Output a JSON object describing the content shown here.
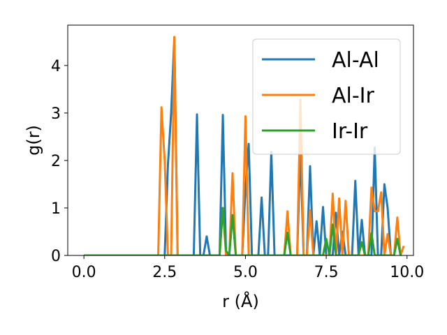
{
  "chart_data": {
    "type": "line",
    "title": "",
    "xlabel": "r (Å)",
    "ylabel": "g(r)",
    "xlim": [
      -0.5,
      10.2
    ],
    "ylim": [
      0,
      4.85
    ],
    "xticks": [
      0.0,
      2.5,
      5.0,
      7.5,
      10.0
    ],
    "xtick_labels": [
      "0.0",
      "2.5",
      "5.0",
      "7.5",
      "10.0"
    ],
    "yticks": [
      0,
      1,
      2,
      3,
      4
    ],
    "ytick_labels": [
      "0",
      "1",
      "2",
      "3",
      "4"
    ],
    "grid": false,
    "legend_position": "top-right",
    "series": [
      {
        "name": "Al-Al",
        "color": "#1f77b4",
        "points": [
          [
            0,
            0
          ],
          [
            2.5,
            0
          ],
          [
            2.6,
            1.9
          ],
          [
            2.7,
            3.0
          ],
          [
            2.8,
            4.6
          ],
          [
            2.9,
            0
          ],
          [
            3.4,
            0
          ],
          [
            3.5,
            2.97
          ],
          [
            3.6,
            0
          ],
          [
            3.7,
            0
          ],
          [
            3.8,
            0.4
          ],
          [
            3.9,
            0
          ],
          [
            4.2,
            0
          ],
          [
            4.3,
            2.96
          ],
          [
            4.4,
            0
          ],
          [
            4.9,
            0
          ],
          [
            5.0,
            1.4
          ],
          [
            5.1,
            2.35
          ],
          [
            5.2,
            0
          ],
          [
            5.4,
            0
          ],
          [
            5.5,
            1.22
          ],
          [
            5.6,
            0
          ],
          [
            5.7,
            0
          ],
          [
            5.8,
            2.18
          ],
          [
            5.9,
            0
          ],
          [
            6.6,
            0
          ],
          [
            6.7,
            2.2
          ],
          [
            6.8,
            0
          ],
          [
            6.9,
            0
          ],
          [
            7.0,
            1.88
          ],
          [
            7.1,
            0
          ],
          [
            7.2,
            0.72
          ],
          [
            7.3,
            0
          ],
          [
            7.4,
            1.02
          ],
          [
            7.5,
            0
          ],
          [
            7.7,
            0
          ],
          [
            7.8,
            0.9
          ],
          [
            7.9,
            0
          ],
          [
            8.0,
            0.5
          ],
          [
            8.1,
            0
          ],
          [
            8.3,
            0
          ],
          [
            8.4,
            1.57
          ],
          [
            8.5,
            0
          ],
          [
            8.6,
            0.75
          ],
          [
            8.7,
            0
          ],
          [
            8.9,
            0
          ],
          [
            9.0,
            2.27
          ],
          [
            9.1,
            0
          ],
          [
            9.2,
            0
          ],
          [
            9.3,
            1.5
          ],
          [
            9.4,
            1.0
          ],
          [
            9.5,
            0
          ],
          [
            9.6,
            0
          ]
        ]
      },
      {
        "name": "Al-Ir",
        "color": "#ff7f0e",
        "points": [
          [
            0,
            0
          ],
          [
            2.3,
            0
          ],
          [
            2.4,
            3.12
          ],
          [
            2.5,
            2.0
          ],
          [
            2.6,
            0
          ],
          [
            2.7,
            0
          ],
          [
            2.8,
            4.6
          ],
          [
            2.9,
            0
          ],
          [
            4.2,
            0
          ],
          [
            4.3,
            1.0
          ],
          [
            4.4,
            0
          ],
          [
            4.5,
            0
          ],
          [
            4.6,
            1.73
          ],
          [
            4.7,
            0
          ],
          [
            4.9,
            0
          ],
          [
            5.0,
            2.93
          ],
          [
            5.1,
            0
          ],
          [
            5.3,
            0
          ],
          [
            6.2,
            0
          ],
          [
            6.3,
            0.93
          ],
          [
            6.4,
            0
          ],
          [
            6.6,
            0
          ],
          [
            6.7,
            3.28
          ],
          [
            6.8,
            0
          ],
          [
            6.9,
            0
          ],
          [
            7.0,
            0.95
          ],
          [
            7.1,
            0
          ],
          [
            7.6,
            0
          ],
          [
            7.7,
            1.3
          ],
          [
            7.8,
            0
          ],
          [
            7.9,
            1.2
          ],
          [
            8.0,
            0
          ],
          [
            8.1,
            1.15
          ],
          [
            8.2,
            0
          ],
          [
            8.8,
            0
          ],
          [
            8.9,
            1.43
          ],
          [
            9.0,
            0.93
          ],
          [
            9.1,
            0.93
          ],
          [
            9.2,
            1.33
          ],
          [
            9.3,
            0
          ],
          [
            9.4,
            0.45
          ],
          [
            9.5,
            0
          ],
          [
            9.6,
            0
          ],
          [
            9.7,
            0.8
          ],
          [
            9.8,
            0
          ],
          [
            9.9,
            0.2
          ]
        ]
      },
      {
        "name": "Ir-Ir",
        "color": "#2ca02c",
        "points": [
          [
            0,
            0
          ],
          [
            4.2,
            0
          ],
          [
            4.3,
            1.0
          ],
          [
            4.4,
            0.1
          ],
          [
            4.5,
            0
          ],
          [
            4.6,
            0.85
          ],
          [
            4.7,
            0
          ],
          [
            6.2,
            0
          ],
          [
            6.3,
            0.48
          ],
          [
            6.4,
            0
          ],
          [
            7.4,
            0
          ],
          [
            7.5,
            0.35
          ],
          [
            7.6,
            0
          ],
          [
            7.7,
            0.65
          ],
          [
            7.8,
            0
          ],
          [
            8.5,
            0
          ],
          [
            8.6,
            0.28
          ],
          [
            8.7,
            0
          ],
          [
            8.8,
            0
          ],
          [
            8.9,
            0.47
          ],
          [
            9.0,
            0
          ],
          [
            9.6,
            0
          ],
          [
            9.7,
            0.35
          ],
          [
            9.8,
            0
          ]
        ]
      }
    ]
  }
}
